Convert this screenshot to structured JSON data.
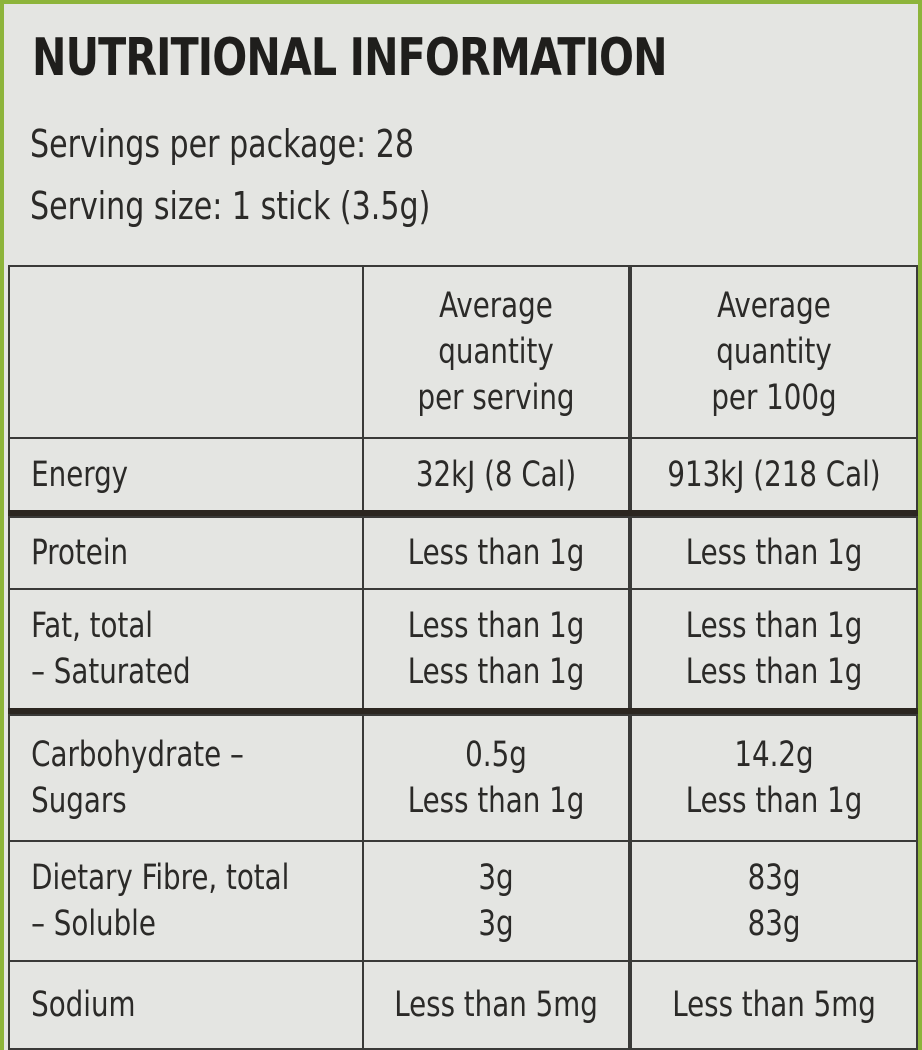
{
  "header": {
    "title": "NUTRITIONAL INFORMATION",
    "servings": "Servings per package: 28",
    "serving_size": "Serving size: 1 stick (3.5g)"
  },
  "table": {
    "columns": [
      [
        "Average",
        "quantity",
        "per serving"
      ],
      [
        "Average",
        "quantity",
        "per 100g"
      ]
    ],
    "rows": [
      {
        "label": [
          "Energy"
        ],
        "per_serving": [
          "32kJ (8 Cal)"
        ],
        "per_100g": [
          "913kJ (218 Cal)"
        ]
      },
      {
        "label": [
          "Protein"
        ],
        "per_serving": [
          "Less than 1g"
        ],
        "per_100g": [
          "Less than 1g"
        ]
      },
      {
        "label": [
          "Fat, total",
          "– Saturated"
        ],
        "per_serving": [
          "Less than 1g",
          "Less than 1g"
        ],
        "per_100g": [
          "Less than 1g",
          "Less than 1g"
        ]
      },
      {
        "label": [
          "Carbohydrate –",
          "Sugars"
        ],
        "per_serving": [
          "0.5g",
          "Less than 1g"
        ],
        "per_100g": [
          "14.2g",
          "Less than 1g"
        ]
      },
      {
        "label": [
          "Dietary Fibre, total",
          "– Soluble"
        ],
        "per_serving": [
          "3g",
          "3g"
        ],
        "per_100g": [
          "83g",
          "83g"
        ]
      },
      {
        "label": [
          "Sodium"
        ],
        "per_serving": [
          "Less than 5mg"
        ],
        "per_100g": [
          "Less than 5mg"
        ]
      }
    ]
  }
}
